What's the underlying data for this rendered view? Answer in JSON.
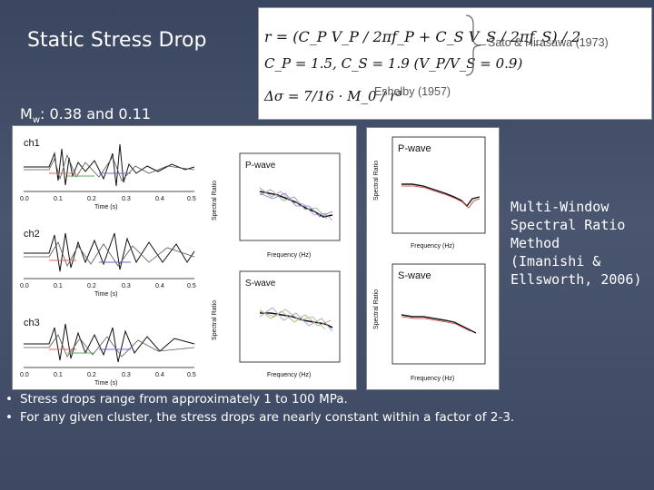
{
  "title": "Static Stress Drop",
  "mw_label": "M",
  "mw_sub": "w",
  "mw_value": ": 0.38 and 0.11",
  "equations": {
    "eq1": "r = (C_P V_P / 2πf_P + C_S V_S / 2πf_S) / 2",
    "eq2": "C_P = 1.5,   C_S = 1.9   (V_P/V_S = 0.9)",
    "eq3": "Δσ = 7/16 · M_0 / r³",
    "sato": "Sato & Hirasawa (1973)",
    "eshelby": "Eshelby (1957)"
  },
  "figure_left": {
    "channels": [
      "ch1",
      "ch2",
      "ch3"
    ],
    "time_axis_label": "Time (s)",
    "time_ticks": [
      "0.0",
      "0.1",
      "0.2",
      "0.3",
      "0.4",
      "0.5"
    ],
    "pwave_label": "P-wave",
    "swave_label": "S-wave",
    "spectral_ylabel": "Spectral Ratio",
    "spectral_xlabel": "Frequency (Hz)"
  },
  "figure_right": {
    "pwave_label": "P-wave",
    "swave_label": "S-wave",
    "ylabel": "Spectral Ratio",
    "xlabel": "Frequency (Hz)"
  },
  "side_text": "Multi-Window\nSpectral Ratio\nMethod\n(Imanishi &\nEllsworth, 2006)",
  "bullets": [
    "Stress drops range from approximately 1 to 100 MPa.",
    "For any given cluster, the stress drops are nearly constant within a factor of 2-3."
  ]
}
